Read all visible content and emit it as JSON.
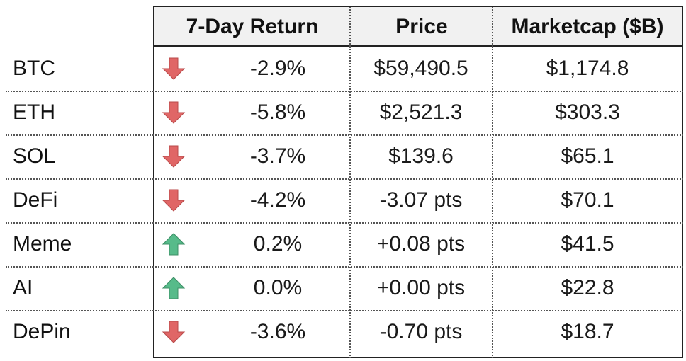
{
  "header": {
    "return_label": "7-Day Return",
    "price_label": "Price",
    "marketcap_label": "Marketcap ($B)"
  },
  "colors": {
    "down_arrow": "#e06666",
    "down_arrow_edge": "#b94a4a",
    "up_arrow": "#57bb8a",
    "up_arrow_edge": "#3d8f66",
    "header_bg": "#f1f1f1"
  },
  "rows": [
    {
      "category": "BTC",
      "direction": "down",
      "arrow_icon": "down-arrow-icon",
      "return": "-2.9%",
      "price": "$59,490.5",
      "marketcap": "$1,174.8"
    },
    {
      "category": "ETH",
      "direction": "down",
      "arrow_icon": "down-arrow-icon",
      "return": "-5.8%",
      "price": "$2,521.3",
      "marketcap": "$303.3"
    },
    {
      "category": "SOL",
      "direction": "down",
      "arrow_icon": "down-arrow-icon",
      "return": "-3.7%",
      "price": "$139.6",
      "marketcap": "$65.1"
    },
    {
      "category": "DeFi",
      "direction": "down",
      "arrow_icon": "down-arrow-icon",
      "return": "-4.2%",
      "price": "-3.07 pts",
      "marketcap": "$70.1"
    },
    {
      "category": "Meme",
      "direction": "up",
      "arrow_icon": "up-arrow-icon",
      "return": "0.2%",
      "price": "+0.08 pts",
      "marketcap": "$41.5"
    },
    {
      "category": "AI",
      "direction": "up",
      "arrow_icon": "up-arrow-icon",
      "return": "0.0%",
      "price": "+0.00 pts",
      "marketcap": "$22.8"
    },
    {
      "category": "DePin",
      "direction": "down",
      "arrow_icon": "down-arrow-icon",
      "return": "-3.6%",
      "price": "-0.70 pts",
      "marketcap": "$18.7"
    }
  ]
}
